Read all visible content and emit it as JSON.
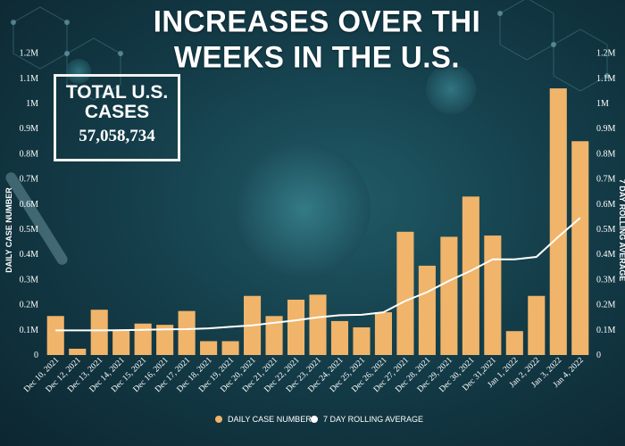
{
  "header": {
    "title": "INCREASES OVER THI WEEKS IN THE U.S."
  },
  "total_box": {
    "label": "TOTAL U.S. CASES",
    "value": "57,058,734"
  },
  "colors": {
    "bar": "#f0b46a",
    "line": "#ffffff"
  },
  "chart_data": {
    "type": "bar",
    "categories": [
      "Dec 10, 2021",
      "Dec 12, 2021",
      "Dec 13, 2021",
      "Dec 14, 2021",
      "Dec 15, 2021",
      "Dec 16, 2021",
      "Dec 17, 2021",
      "Dec 18, 2021",
      "Dec 19, 2021",
      "Dec 20, 2021",
      "Dec 21, 2021",
      "Dec 22, 2021",
      "Dec 23, 2021",
      "Dec 24, 2021",
      "Dec 25, 2021",
      "Dec 26, 2021",
      "Dec 27, 2021",
      "Dec 28, 2021",
      "Dec 29, 2021",
      "Dec 30, 2021",
      "Dec 31,2021",
      "Jan 1, 2022",
      "Jan 2, 2022",
      "Jan 3, 2022",
      "Jan 4, 2022"
    ],
    "series": [
      {
        "name": "DAILY CASE NUMBER",
        "kind": "bar",
        "values": [
          155000,
          25000,
          180000,
          100000,
          125000,
          120000,
          175000,
          55000,
          55000,
          235000,
          155000,
          220000,
          240000,
          135000,
          110000,
          170000,
          490000,
          355000,
          470000,
          630000,
          475000,
          95000,
          235000,
          1060000,
          850000
        ]
      },
      {
        "name": "7 DAY ROLLING AVERAGE",
        "kind": "line",
        "values": [
          98000,
          98000,
          98000,
          99000,
          100000,
          102000,
          103000,
          106000,
          112000,
          118000,
          128000,
          138000,
          150000,
          158000,
          160000,
          170000,
          215000,
          250000,
          295000,
          335000,
          380000,
          380000,
          390000,
          470000,
          545000
        ]
      }
    ],
    "ylabel_left": "DAILY CASE NUMBER",
    "ylabel_right": "7 DAY ROLLING AVERAGE",
    "yticks": [
      "0",
      "0.1M",
      "0.2M",
      "0.3M",
      "0.4M",
      "0.5M",
      "0.6M",
      "0.7M",
      "0.8M",
      "0.9M",
      "1M",
      "1.1M",
      "1.2M"
    ],
    "ylim": [
      0,
      1200000
    ],
    "legend_position": "bottom",
    "grid": false
  }
}
